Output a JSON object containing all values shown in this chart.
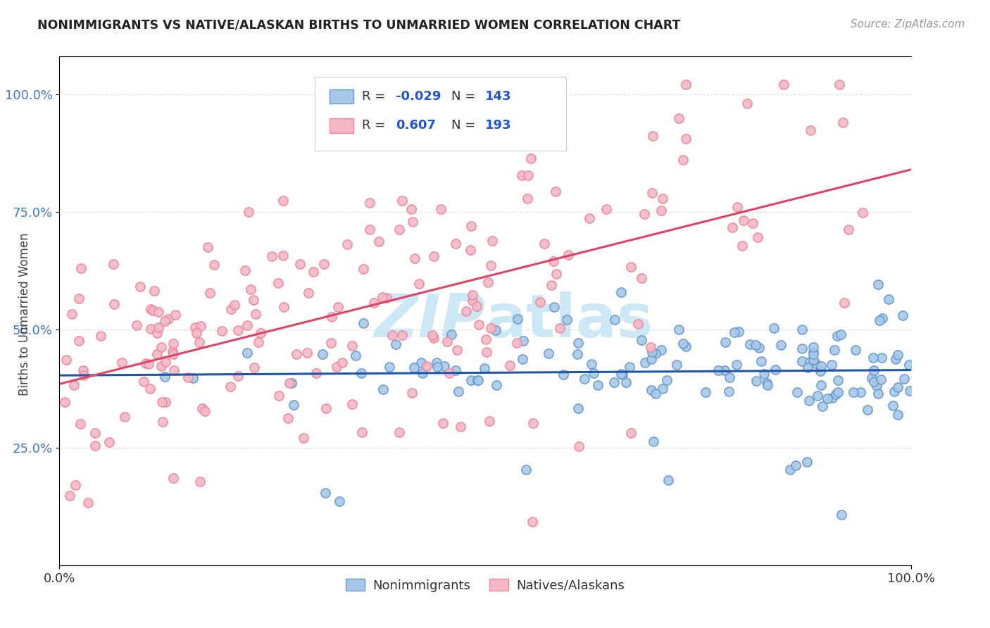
{
  "title": "NONIMMIGRANTS VS NATIVE/ALASKAN BIRTHS TO UNMARRIED WOMEN CORRELATION CHART",
  "source": "Source: ZipAtlas.com",
  "ylabel": "Births to Unmarried Women",
  "ytick_labels": [
    "25.0%",
    "50.0%",
    "75.0%",
    "100.0%"
  ],
  "ytick_positions": [
    0.25,
    0.5,
    0.75,
    1.0
  ],
  "blue_scatter_color": "#a8c8e8",
  "pink_scatter_color": "#f4b8c8",
  "blue_line_color": "#2255aa",
  "pink_line_color": "#dd4466",
  "blue_edge_color": "#6699cc",
  "pink_edge_color": "#ee8899",
  "background_color": "#ffffff",
  "grid_color": "#e0e0e0",
  "ytick_color": "#4477cc",
  "title_color": "#222222",
  "source_color": "#999999",
  "ylabel_color": "#444444",
  "watermark_color": "#cce8f4",
  "R_blue": -0.029,
  "R_pink": 0.607,
  "N_blue": 143,
  "N_pink": 193,
  "legend_R_color": "#cc1144",
  "legend_N_color": "#2255cc",
  "legend_text_color": "#333333",
  "seed": 12345
}
